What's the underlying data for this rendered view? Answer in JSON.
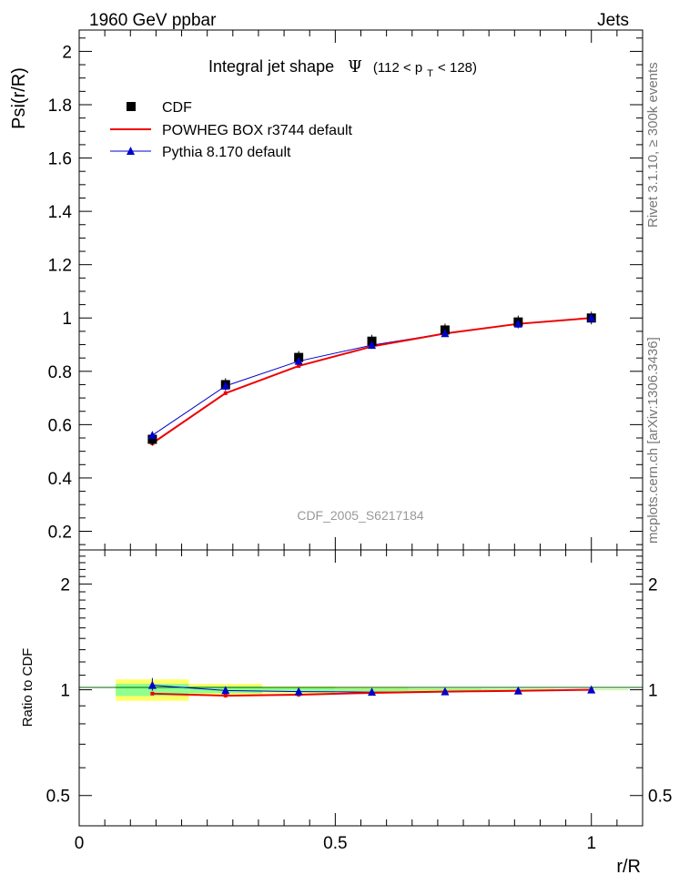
{
  "header": {
    "left": "1960 GeV ppbar",
    "right": "Jets"
  },
  "side_labels": {
    "rivet": "Rivet 3.1.10, ≥ 300k events",
    "mcplots": "mcplots.cern.ch [arXiv:1306.3436]"
  },
  "colors": {
    "data": "#000000",
    "powheg": "#ee0000",
    "pythia": "#0000cc",
    "band_inner": "#8fff8f",
    "band_outer": "#ffff66",
    "analysis_label": "#999999"
  },
  "chart_data": [
    {
      "type": "line",
      "title_prefix": "Integral jet shape",
      "title_symbol": "Ψ",
      "title_range_open": "(112 < p",
      "title_range_sub": "T",
      "title_range_close": " < 128)",
      "xlabel": "r/R",
      "ylabel": "Psi(r/R)",
      "analysis": "CDF_2005_S6217184",
      "xlim": [
        0,
        1.1
      ],
      "ylim": [
        0.13,
        2.08
      ],
      "grid": false,
      "legend_position": "top-left",
      "yticks": [
        0.2,
        0.4,
        0.6,
        0.8,
        1,
        1.2,
        1.4,
        1.6,
        1.8,
        2
      ],
      "ytick_labels": [
        "0.2",
        "0.4",
        "0.6",
        "0.8",
        "1",
        "1.2",
        "1.4",
        "1.6",
        "1.8",
        "2"
      ],
      "x": [
        0.142857,
        0.285714,
        0.428571,
        0.571429,
        0.714286,
        0.857143,
        1.0
      ],
      "series": [
        {
          "name": "CDF",
          "kind": "data",
          "values": [
            0.545,
            0.75,
            0.852,
            0.913,
            0.955,
            0.985,
            1.0
          ]
        },
        {
          "name": "POWHEG BOX r3744 default",
          "kind": "line",
          "values": [
            0.53,
            0.718,
            0.82,
            0.893,
            0.942,
            0.978,
            1.0
          ]
        },
        {
          "name": "Pythia 8.170 default",
          "kind": "marker-line",
          "values": [
            0.56,
            0.745,
            0.838,
            0.898,
            0.942,
            0.978,
            1.0
          ]
        }
      ]
    },
    {
      "type": "line",
      "ylabel": "Ratio to CDF",
      "xlabel": "r/R",
      "xlim": [
        0,
        1.1
      ],
      "ylim": [
        0.41,
        2.5
      ],
      "yscale": "log",
      "yticks": [
        0.5,
        1,
        2
      ],
      "ytick_labels": [
        "0.5",
        "1",
        "2"
      ],
      "xticks": [
        0,
        0.5,
        1
      ],
      "xtick_labels": [
        "0",
        "0.5",
        "1"
      ],
      "x": [
        0.142857,
        0.285714,
        0.428571,
        0.571429,
        0.714286,
        0.857143,
        1.0
      ],
      "band_bins": [
        [
          0.0714,
          0.2143
        ],
        [
          0.2143,
          0.3571
        ],
        [
          0.3571,
          0.5
        ],
        [
          0.5,
          0.6429
        ],
        [
          0.6429,
          0.7857
        ],
        [
          0.7857,
          0.9286
        ],
        [
          0.9286,
          1.0714
        ]
      ],
      "band_inner": [
        0.04,
        0.022,
        0.012,
        0.008,
        0.006,
        0.004,
        0.002
      ],
      "band_outer": [
        0.07,
        0.04,
        0.022,
        0.014,
        0.009,
        0.006,
        0.003
      ],
      "series": [
        {
          "name": "POWHEG BOX r3744 default",
          "kind": "line",
          "values": [
            0.975,
            0.962,
            0.968,
            0.98,
            0.988,
            0.993,
            1.0
          ]
        },
        {
          "name": "Pythia 8.170 default",
          "kind": "marker-line",
          "values": [
            1.03,
            0.995,
            0.988,
            0.985,
            0.988,
            0.993,
            1.0
          ]
        }
      ]
    }
  ]
}
